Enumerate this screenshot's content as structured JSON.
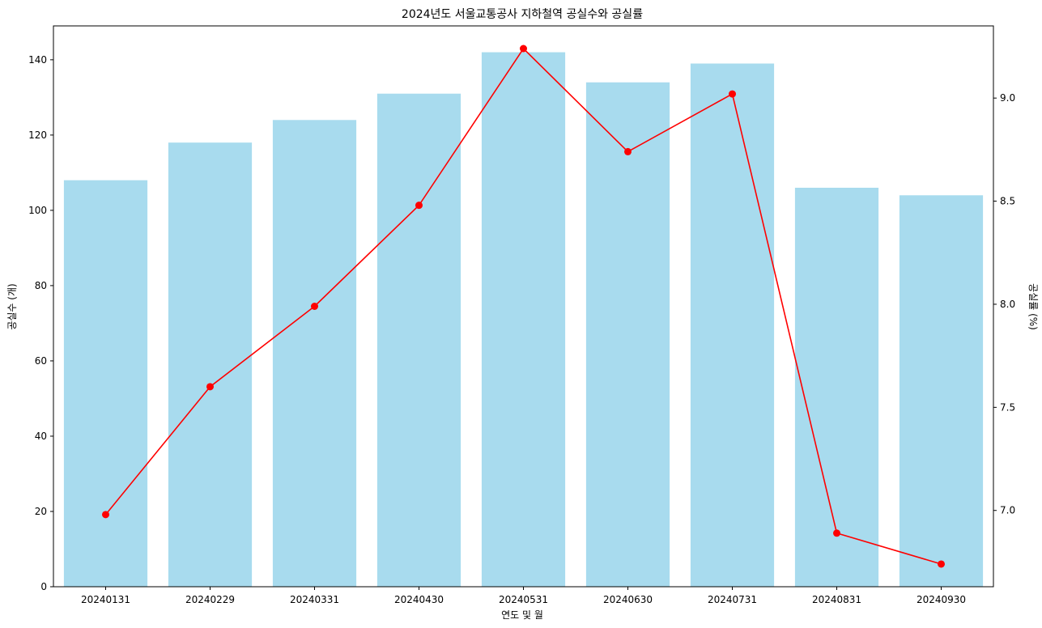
{
  "chart_data": {
    "type": "bar",
    "title": "2024년도 서울교통공사 지하철역 공실수와 공실률",
    "xlabel": "연도 및 월",
    "ylabel": "공실수 (개)",
    "y2label": "공실률 (%)",
    "categories": [
      "20240131",
      "20240229",
      "20240331",
      "20240430",
      "20240531",
      "20240630",
      "20240731",
      "20240831",
      "20240930"
    ],
    "series": [
      {
        "type": "bar",
        "axis": "left",
        "color": "#a8dbee",
        "values": [
          108,
          118,
          124,
          131,
          142,
          134,
          139,
          106,
          104
        ]
      },
      {
        "type": "line",
        "axis": "right",
        "color": "#ff0000",
        "marker": "circle",
        "values": [
          6.98,
          7.6,
          7.99,
          8.48,
          9.24,
          8.74,
          9.02,
          6.89,
          6.74
        ]
      }
    ],
    "ylim": [
      0,
      149
    ],
    "y2lim": [
      6.63,
      9.35
    ],
    "yticks": [
      "0",
      "20",
      "40",
      "60",
      "80",
      "100",
      "120",
      "140"
    ],
    "y2ticks": [
      "7.0",
      "7.5",
      "8.0",
      "8.5",
      "9.0"
    ],
    "grid": false
  }
}
